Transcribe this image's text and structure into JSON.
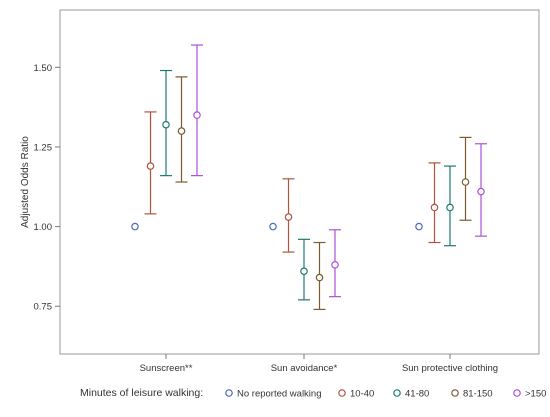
{
  "chart_data": {
    "type": "scatter",
    "subtype": "forest-plot-with-error-bars",
    "title": "",
    "xlabel": "",
    "ylabel": "Adjusted Odds Ratio",
    "ylim": [
      0.6,
      1.68
    ],
    "yticks": [
      0.75,
      1.0,
      1.25,
      1.5
    ],
    "ytick_labels": [
      "0.75",
      "1.00",
      "1.25",
      "1.50"
    ],
    "categories": [
      "Sunscreen**",
      "Sun avoidance*",
      "Sun protective clothing"
    ],
    "legend": {
      "title": "Minutes of leisure walking:",
      "placement": "bottom"
    },
    "grid": false,
    "series": [
      {
        "name": "No reported walking",
        "color": "#4a6bb5",
        "points": [
          {
            "category": "Sunscreen**",
            "value": 1.0,
            "lower": 1.0,
            "upper": 1.0
          },
          {
            "category": "Sun avoidance*",
            "value": 1.0,
            "lower": 1.0,
            "upper": 1.0
          },
          {
            "category": "Sun protective clothing",
            "value": 1.0,
            "lower": 1.0,
            "upper": 1.0
          }
        ]
      },
      {
        "name": "10-40",
        "color": "#b3523c",
        "points": [
          {
            "category": "Sunscreen**",
            "value": 1.19,
            "lower": 1.04,
            "upper": 1.36
          },
          {
            "category": "Sun avoidance*",
            "value": 1.03,
            "lower": 0.92,
            "upper": 1.15
          },
          {
            "category": "Sun protective clothing",
            "value": 1.06,
            "lower": 0.95,
            "upper": 1.2
          }
        ]
      },
      {
        "name": "41-80",
        "color": "#1e7a6e",
        "points": [
          {
            "category": "Sunscreen**",
            "value": 1.32,
            "lower": 1.16,
            "upper": 1.49
          },
          {
            "category": "Sun avoidance*",
            "value": 0.86,
            "lower": 0.77,
            "upper": 0.96
          },
          {
            "category": "Sun protective clothing",
            "value": 1.06,
            "lower": 0.94,
            "upper": 1.19
          }
        ]
      },
      {
        "name": "81-150",
        "color": "#7a5a2e",
        "points": [
          {
            "category": "Sunscreen**",
            "value": 1.3,
            "lower": 1.14,
            "upper": 1.47
          },
          {
            "category": "Sun avoidance*",
            "value": 0.84,
            "lower": 0.74,
            "upper": 0.95
          },
          {
            "category": "Sun protective clothing",
            "value": 1.14,
            "lower": 1.02,
            "upper": 1.28
          }
        ]
      },
      {
        "name": ">150",
        "color": "#b04fd6",
        "points": [
          {
            "category": "Sunscreen**",
            "value": 1.35,
            "lower": 1.16,
            "upper": 1.57
          },
          {
            "category": "Sun avoidance*",
            "value": 0.88,
            "lower": 0.78,
            "upper": 0.99
          },
          {
            "category": "Sun protective clothing",
            "value": 1.11,
            "lower": 0.97,
            "upper": 1.26
          }
        ]
      }
    ]
  }
}
